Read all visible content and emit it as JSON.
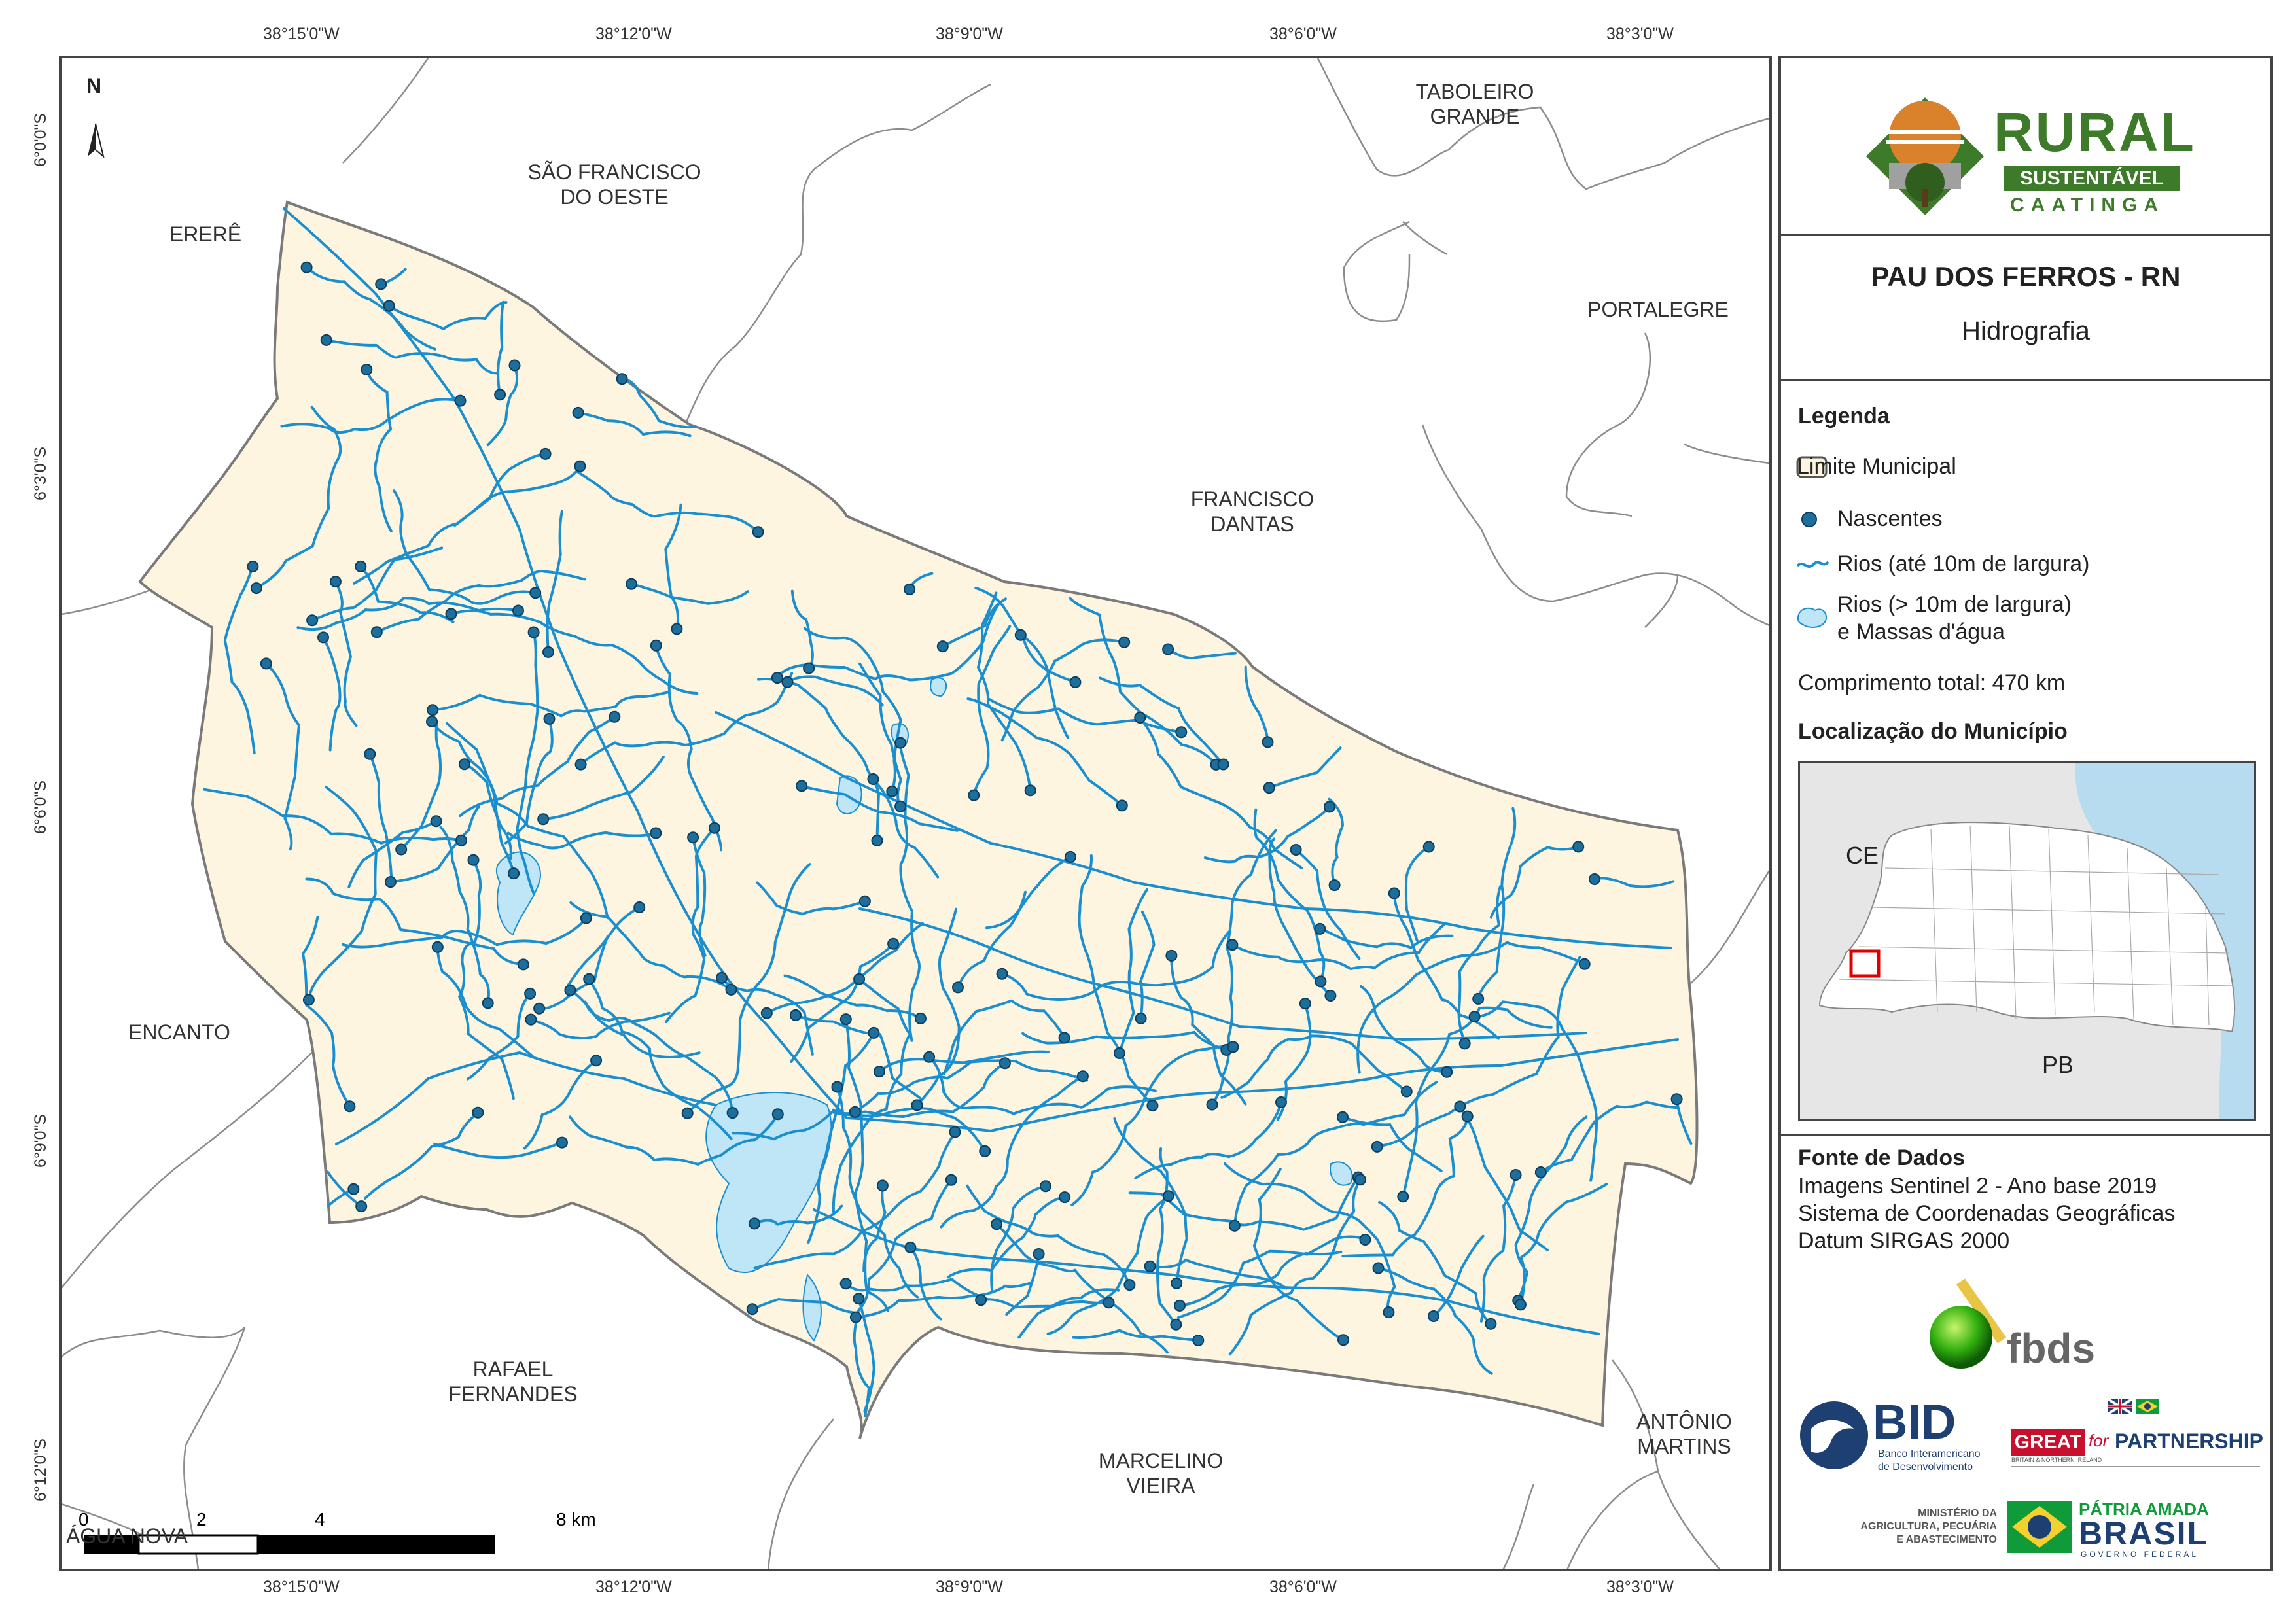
{
  "coords": {
    "top": [
      "38°15'0\"W",
      "38°12'0\"W",
      "38°9'0\"W",
      "38°6'0\"W",
      "38°3'0\"W"
    ],
    "bottom": [
      "38°15'0\"W",
      "38°12'0\"W",
      "38°9'0\"W",
      "38°6'0\"W",
      "38°3'0\"W"
    ],
    "left": [
      "6°0'0\"S",
      "6°3'0\"S",
      "6°6'0\"S",
      "6°9'0\"S",
      "6°12'0\"S"
    ]
  },
  "north_arrow": "N",
  "municipalities": {
    "erere": "ERERÊ",
    "sao_francisco": "SÃO FRANCISCO\nDO OESTE",
    "taboleiro": "TABOLEIRO\nGRANDE",
    "portalegre": "PORTALEGRE",
    "francisco_dantas": "FRANCISCO\nDANTAS",
    "encanto": "ENCANTO",
    "rafael": "RAFAEL\nFERNANDES",
    "marcelino": "MARCELINO\nVIEIRA",
    "antonio": "ANTÔNIO\nMARTINS",
    "agua_nova": "ÁGUA NOVA"
  },
  "scale": [
    "0",
    "2",
    "4",
    "8 km"
  ],
  "logo": {
    "rural": "RURAL",
    "sustentavel": "SUSTENTÁVEL",
    "caatinga": "CAATINGA"
  },
  "title": "PAU DOS FERROS - RN",
  "subtitle": "Hidrografia",
  "legend": {
    "heading": "Legenda",
    "limite": "Limite Municipal",
    "nascentes": "Nascentes",
    "rios_small": "Rios (até 10m de largura)",
    "rios_large_1": "Rios (> 10m de largura)",
    "rios_large_2": "e Massas d'água",
    "comprimento": "Comprimento total:  470 km"
  },
  "location": {
    "heading": "Localização do Município",
    "ce": "CE",
    "pb": "PB"
  },
  "sources": {
    "heading": "Fonte de Dados",
    "line1": "Imagens Sentinel 2 - Ano base 2019",
    "line2": "Sistema de Coordenadas Geográficas",
    "line3": "Datum SIRGAS 2000"
  },
  "partners": {
    "fbds": "fbds",
    "bid": "BID",
    "bid_sub1": "Banco Interamericano",
    "bid_sub2": "de Desenvolvimento",
    "great": "GREAT",
    "great_for": "for",
    "great_partner": "PARTNERSHIP",
    "great_sub": "BRITAIN & NORTHERN IRELAND",
    "min1": "MINISTÉRIO DA",
    "min2": "AGRICULTURA, PECUÁRIA",
    "min3": "E ABASTECIMENTO",
    "patria": "PÁTRIA AMADA",
    "brasil": "BRASIL",
    "gov": "GOVERNO FEDERAL"
  },
  "colors": {
    "municipality_fill": "#fdf5e0",
    "river": "#1a8fd0",
    "water_body": "#bfe6f7",
    "spring": "#1e6e9c",
    "border": "#7a7a7a",
    "ocean": "#b7dcf0",
    "state_fill": "#e6e6e6",
    "logo_green": "#3d7a2a",
    "logo_orange": "#d9822b"
  }
}
